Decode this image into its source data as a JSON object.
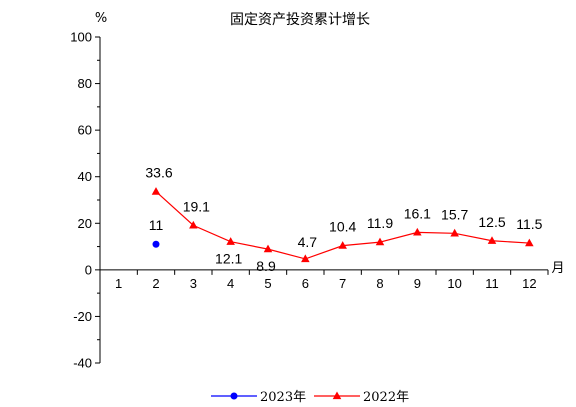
{
  "chart_data": {
    "type": "line",
    "title": "固定资产投资累计增长",
    "ylabel": "%",
    "xlabel": "月",
    "ylim": [
      -40,
      100
    ],
    "yticks": [
      100,
      80,
      60,
      40,
      20,
      0,
      -20,
      -40
    ],
    "categories": [
      "1",
      "2",
      "3",
      "4",
      "5",
      "6",
      "7",
      "8",
      "9",
      "10",
      "11",
      "12"
    ],
    "grid": false,
    "legend_position": "bottom",
    "series": [
      {
        "name": "2023年",
        "color": "#0000ff",
        "marker": "circle",
        "x": [
          "2"
        ],
        "values": [
          11
        ],
        "labels": [
          "11"
        ]
      },
      {
        "name": "2022年",
        "color": "#ff0000",
        "marker": "triangle",
        "x": [
          "2",
          "3",
          "4",
          "5",
          "6",
          "7",
          "8",
          "9",
          "10",
          "11",
          "12"
        ],
        "values": [
          33.6,
          19.1,
          12.1,
          8.9,
          4.7,
          10.4,
          11.9,
          16.1,
          15.7,
          12.5,
          11.5
        ],
        "labels": [
          "33.6",
          "19.1",
          "12.1",
          "8.9",
          "4.7",
          "10.4",
          "11.9",
          "16.1",
          "15.7",
          "12.5",
          "11.5"
        ]
      }
    ]
  }
}
